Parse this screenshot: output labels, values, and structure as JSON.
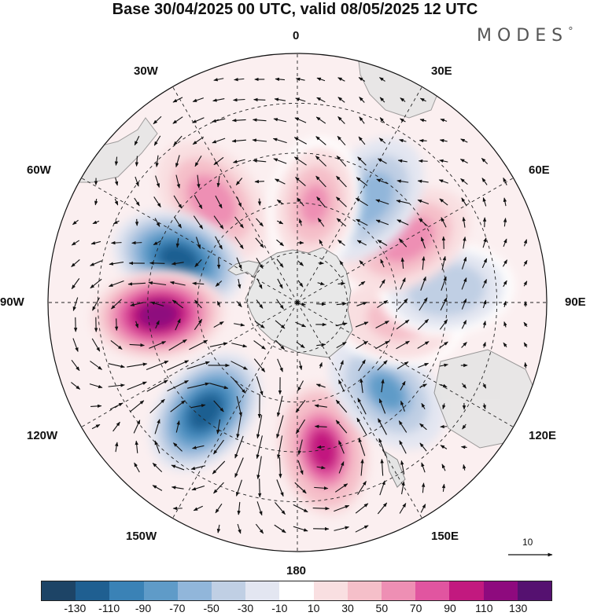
{
  "title": "Base 30/04/2025 00 UTC, valid 08/05/2025 12 UTC",
  "brand": {
    "name": "MODES",
    "mark": "°"
  },
  "meridian_labels": {
    "lon_0": "0",
    "lon_30e": "30E",
    "lon_60e": "60E",
    "lon_90e": "90E",
    "lon_120e": "120E",
    "lon_150e": "150E",
    "lon_180": "180",
    "lon_150w": "150W",
    "lon_120w": "120W",
    "lon_90w": "90W",
    "lon_60w": "60W",
    "lon_30w": "30W"
  },
  "reference_vector": {
    "value": "10"
  },
  "colorbar": {
    "colors": [
      "#1d4466",
      "#1f5f91",
      "#3a82b6",
      "#5f9bc8",
      "#91b6da",
      "#c0cfe4",
      "#e3e6f1",
      "#ffffff",
      "#f9dfe1",
      "#f5bfc9",
      "#ee8fb4",
      "#e155a0",
      "#c2197f",
      "#8e0a7e",
      "#551170"
    ],
    "ticks": [
      "-130",
      "-110",
      "-90",
      "-70",
      "-50",
      "-30",
      "-10",
      "10",
      "30",
      "50",
      "70",
      "90",
      "110",
      "130"
    ]
  },
  "anomaly_cells": [
    {
      "kind": "pos",
      "lon": -40,
      "lat": -50,
      "value": 70
    },
    {
      "kind": "neg",
      "lon": -70,
      "lat": -52,
      "value": -110
    },
    {
      "kind": "pos",
      "lon": -95,
      "lat": -48,
      "value": 125
    },
    {
      "kind": "neg",
      "lon": -140,
      "lat": -47,
      "value": -120
    },
    {
      "kind": "pos",
      "lon": 170,
      "lat": -45,
      "value": 100
    },
    {
      "kind": "neg",
      "lon": 135,
      "lat": -52,
      "value": -70
    },
    {
      "kind": "pos",
      "lon": 100,
      "lat": -60,
      "value": 45
    },
    {
      "kind": "neg",
      "lon": 85,
      "lat": -45,
      "value": -45
    },
    {
      "kind": "pos",
      "lon": 60,
      "lat": -52,
      "value": 65
    },
    {
      "kind": "neg",
      "lon": 35,
      "lat": -52,
      "value": -60
    },
    {
      "kind": "pos",
      "lon": 10,
      "lat": -60,
      "value": 55
    }
  ]
}
